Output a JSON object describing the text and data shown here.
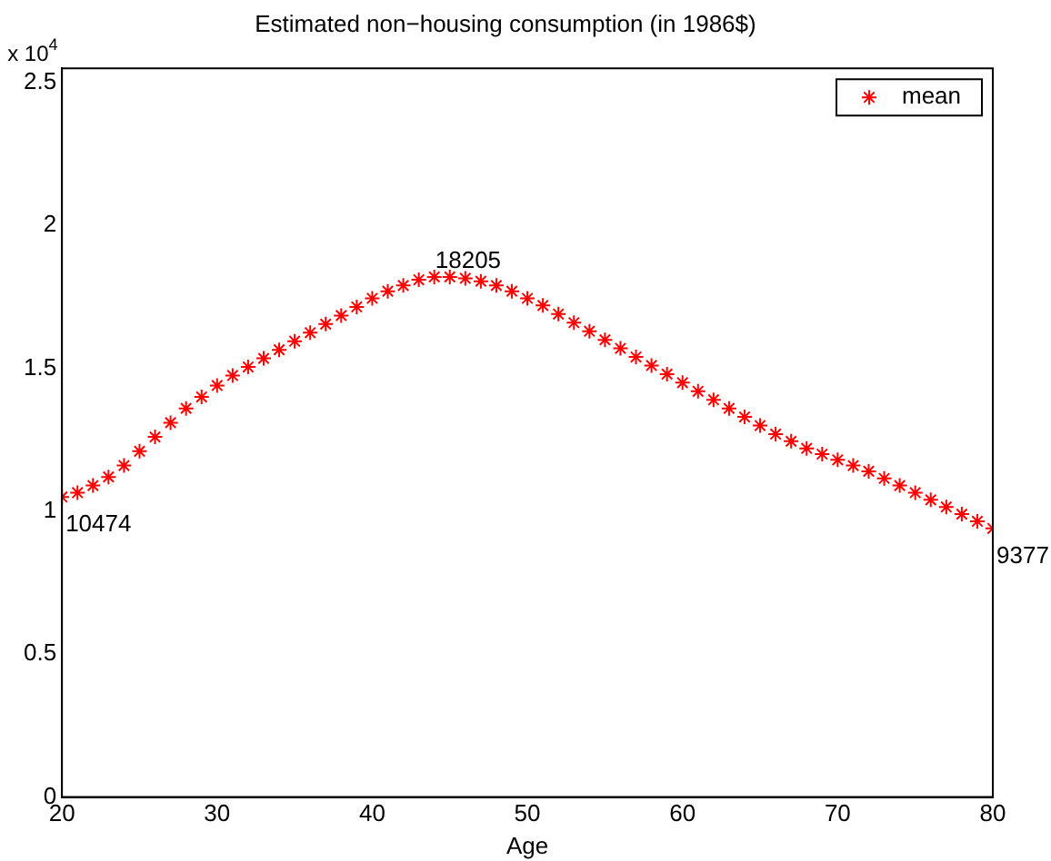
{
  "chart_data": {
    "type": "scatter",
    "title": "Estimated non−housing consumption (in 1986$)",
    "xlabel": "Age",
    "x": [
      20,
      21,
      22,
      23,
      24,
      25,
      26,
      27,
      28,
      29,
      30,
      31,
      32,
      33,
      34,
      35,
      36,
      37,
      38,
      39,
      40,
      41,
      42,
      43,
      44,
      45,
      46,
      47,
      48,
      49,
      50,
      51,
      52,
      53,
      54,
      55,
      56,
      57,
      58,
      59,
      60,
      61,
      62,
      63,
      64,
      65,
      66,
      67,
      68,
      69,
      70,
      71,
      72,
      73,
      74,
      75,
      76,
      77,
      78,
      79,
      80
    ],
    "series": [
      {
        "name": "mean",
        "color": "#ff0000",
        "values": [
          1.05,
          1.065,
          1.09,
          1.12,
          1.16,
          1.21,
          1.26,
          1.31,
          1.36,
          1.4,
          1.44,
          1.475,
          1.505,
          1.535,
          1.565,
          1.595,
          1.625,
          1.655,
          1.685,
          1.715,
          1.745,
          1.77,
          1.79,
          1.81,
          1.82,
          1.82,
          1.815,
          1.805,
          1.79,
          1.77,
          1.745,
          1.72,
          1.69,
          1.66,
          1.63,
          1.6,
          1.57,
          1.54,
          1.51,
          1.48,
          1.45,
          1.42,
          1.39,
          1.36,
          1.33,
          1.3,
          1.27,
          1.245,
          1.22,
          1.2,
          1.18,
          1.16,
          1.14,
          1.115,
          1.09,
          1.065,
          1.04,
          1.015,
          0.99,
          0.965,
          0.94
        ]
      }
    ],
    "marker": "cross",
    "legend": "top right",
    "grid": false,
    "xlim": [
      20,
      80
    ],
    "xticks": [
      20,
      30,
      40,
      50,
      60,
      70,
      80
    ],
    "ylim": [
      0,
      2.55
    ],
    "yticks": [
      0,
      0.5,
      1,
      1.5,
      2,
      2.5
    ],
    "annotations": [
      "x 10$^{4}$",
      {
        "text": "10474",
        "x": 20,
        "y": 1.05
      },
      {
        "text": "18205",
        "x": 45,
        "y": 1.82
      },
      {
        "text": "9377",
        "x": 80,
        "y": 0.94
      }
    ]
  }
}
